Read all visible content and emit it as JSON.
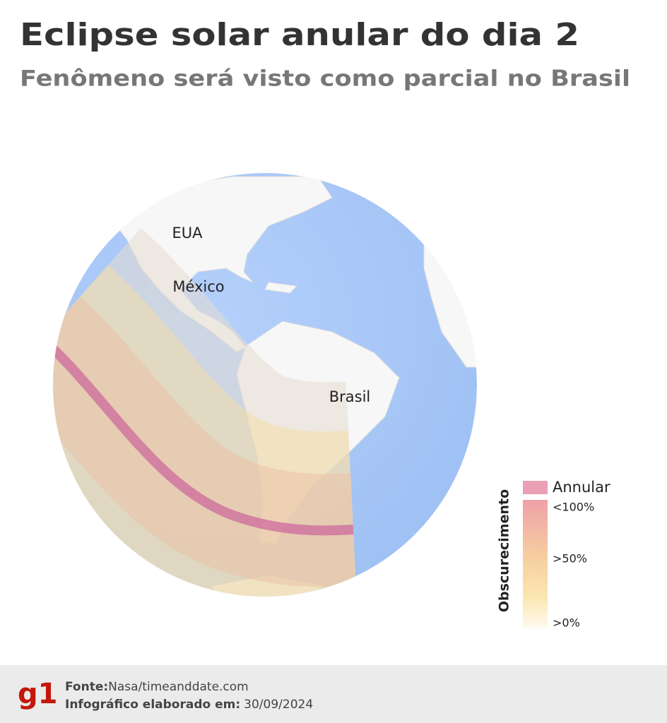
{
  "header": {
    "title": "Eclipse solar anular do dia 2",
    "subtitle": "Fenômeno será visto como parcial no Brasil"
  },
  "map": {
    "labels": [
      "EUA",
      "México",
      "Brasil"
    ]
  },
  "legend": {
    "title": "Obscurecimento",
    "annular": "Annular",
    "levels": [
      "<100%",
      ">50%",
      ">0%"
    ]
  },
  "footer": {
    "logo": "g1",
    "source_label": "Fonte:",
    "source": "Nasa/timeanddate.com",
    "date_label": "Infográfico elaborado em:",
    "date": "30/09/2024"
  }
}
